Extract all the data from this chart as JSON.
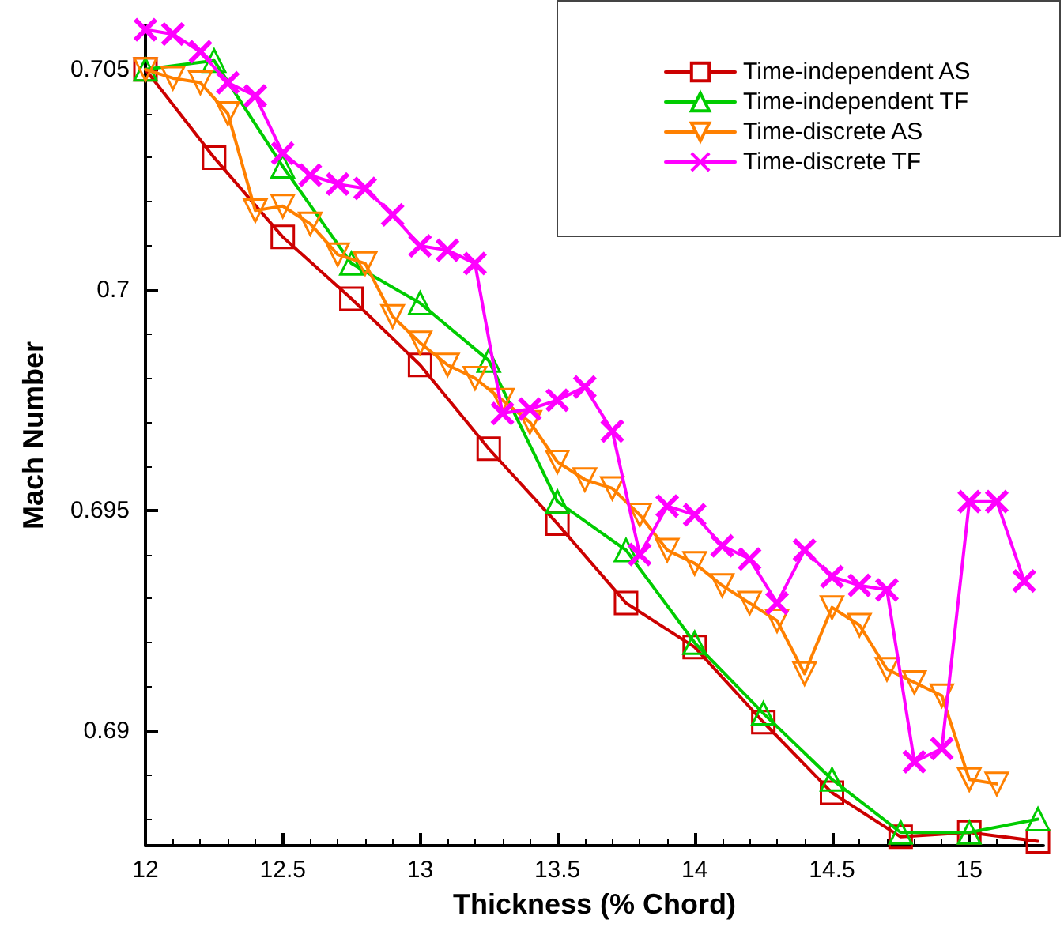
{
  "chart_data": {
    "type": "line",
    "xlabel": "Thickness (% Chord)",
    "ylabel": "Mach Number",
    "xlim": [
      12,
      15.27
    ],
    "ylim": [
      0.6874,
      0.706
    ],
    "xticks": [
      12,
      {
        "value": 12.1,
        "label": null
      },
      {
        "value": 12.2,
        "label": null
      },
      {
        "value": 12.3,
        "label": null
      },
      {
        "value": 12.4,
        "label": null
      },
      12.5,
      {
        "value": 12.6,
        "label": null
      },
      {
        "value": 12.7,
        "label": null
      },
      {
        "value": 12.8,
        "label": null
      },
      {
        "value": 12.9,
        "label": null
      },
      13,
      {
        "value": 13.1,
        "label": null
      },
      {
        "value": 13.2,
        "label": null
      },
      {
        "value": 13.3,
        "label": null
      },
      {
        "value": 13.4,
        "label": null
      },
      13.5,
      {
        "value": 13.6,
        "label": null
      },
      {
        "value": 13.7,
        "label": null
      },
      {
        "value": 13.8,
        "label": null
      },
      {
        "value": 13.9,
        "label": null
      },
      14,
      {
        "value": 14.1,
        "label": null
      },
      {
        "value": 14.2,
        "label": null
      },
      {
        "value": 14.3,
        "label": null
      },
      {
        "value": 14.4,
        "label": null
      },
      14.5,
      {
        "value": 14.6,
        "label": null
      },
      {
        "value": 14.7,
        "label": null
      },
      {
        "value": 14.8,
        "label": null
      },
      {
        "value": 14.9,
        "label": null
      },
      15,
      {
        "value": 15.1,
        "label": null
      },
      {
        "value": 15.2,
        "label": null
      }
    ],
    "yticks": [
      {
        "value": 0.688,
        "label": null
      },
      {
        "value": 0.689,
        "label": null
      },
      0.69,
      {
        "value": 0.691,
        "label": null
      },
      {
        "value": 0.692,
        "label": null
      },
      {
        "value": 0.693,
        "label": null
      },
      {
        "value": 0.694,
        "label": null
      },
      0.695,
      {
        "value": 0.696,
        "label": null
      },
      {
        "value": 0.697,
        "label": null
      },
      {
        "value": 0.698,
        "label": null
      },
      {
        "value": 0.699,
        "label": null
      },
      0.7,
      {
        "value": 0.701,
        "label": null
      },
      {
        "value": 0.702,
        "label": null
      },
      {
        "value": 0.703,
        "label": null
      },
      {
        "value": 0.704,
        "label": null
      },
      0.705
    ],
    "grid": false,
    "legend": "top right",
    "line_style": "solid",
    "series": [
      {
        "name": "Time-independent AS",
        "color": "#cc0000",
        "marker": "square",
        "x": [
          12,
          12.25,
          12.5,
          12.75,
          13,
          13.25,
          13.5,
          13.75,
          14,
          14.25,
          14.5,
          14.75,
          15,
          15.25
        ],
        "values": [
          0.705,
          0.703,
          0.7012,
          0.6998,
          0.6983,
          0.6964,
          0.6947,
          0.6929,
          0.6919,
          0.6902,
          0.6886,
          0.6876,
          0.6877,
          0.6875
        ]
      },
      {
        "name": "Time-independent TF",
        "color": "#00cc00",
        "marker": "triangle",
        "x": [
          12,
          12.25,
          12.5,
          12.75,
          13,
          13.25,
          13.5,
          13.75,
          14,
          14.25,
          14.5,
          14.75,
          15,
          15.25
        ],
        "values": [
          0.705,
          0.7052,
          0.7028,
          0.7006,
          0.6997,
          0.6984,
          0.6952,
          0.6941,
          0.692,
          0.6904,
          0.6889,
          0.6877,
          0.6877,
          0.688
        ]
      },
      {
        "name": "Time-discrete AS",
        "color": "#ff8000",
        "marker": "triangle-down",
        "x": [
          12,
          12.1,
          12.2,
          12.3,
          12.4,
          12.5,
          12.6,
          12.7,
          12.8,
          12.9,
          13,
          13.1,
          13.2,
          13.3,
          13.4,
          13.5,
          13.6,
          13.7,
          13.8,
          13.9,
          14,
          14.1,
          14.2,
          14.3,
          14.4,
          14.5,
          14.6,
          14.7,
          14.8,
          14.9,
          15,
          15.1
        ],
        "values": [
          0.705,
          0.7048,
          0.7047,
          0.704,
          0.7018,
          0.7019,
          0.7015,
          0.7008,
          0.7006,
          0.6994,
          0.6988,
          0.6983,
          0.698,
          0.6975,
          0.697,
          0.6961,
          0.6957,
          0.6955,
          0.6949,
          0.6941,
          0.6938,
          0.6933,
          0.6929,
          0.6925,
          0.6913,
          0.6928,
          0.6924,
          0.6914,
          0.6911,
          0.6908,
          0.6889,
          0.6888
        ]
      },
      {
        "name": "Time-discrete TF",
        "color": "#ff00ff",
        "marker": "cross",
        "x": [
          12,
          12.1,
          12.2,
          12.3,
          12.4,
          12.5,
          12.6,
          12.7,
          12.8,
          12.9,
          13,
          13.1,
          13.2,
          13.3,
          13.4,
          13.5,
          13.6,
          13.7,
          13.8,
          13.9,
          14,
          14.1,
          14.2,
          14.3,
          14.4,
          14.5,
          14.6,
          14.7,
          14.8,
          14.9,
          15,
          15.1,
          15.2
        ],
        "values": [
          0.7059,
          0.7058,
          0.7054,
          0.7047,
          0.7044,
          0.7031,
          0.7026,
          0.7024,
          0.7023,
          0.7017,
          0.701,
          0.7009,
          0.7006,
          0.6972,
          0.6973,
          0.6975,
          0.6978,
          0.6968,
          0.694,
          0.6951,
          0.6949,
          0.6942,
          0.6939,
          0.6929,
          0.6941,
          0.6935,
          0.6933,
          0.6932,
          0.6893,
          0.6896,
          0.6952,
          0.6952,
          0.6934
        ]
      }
    ]
  }
}
